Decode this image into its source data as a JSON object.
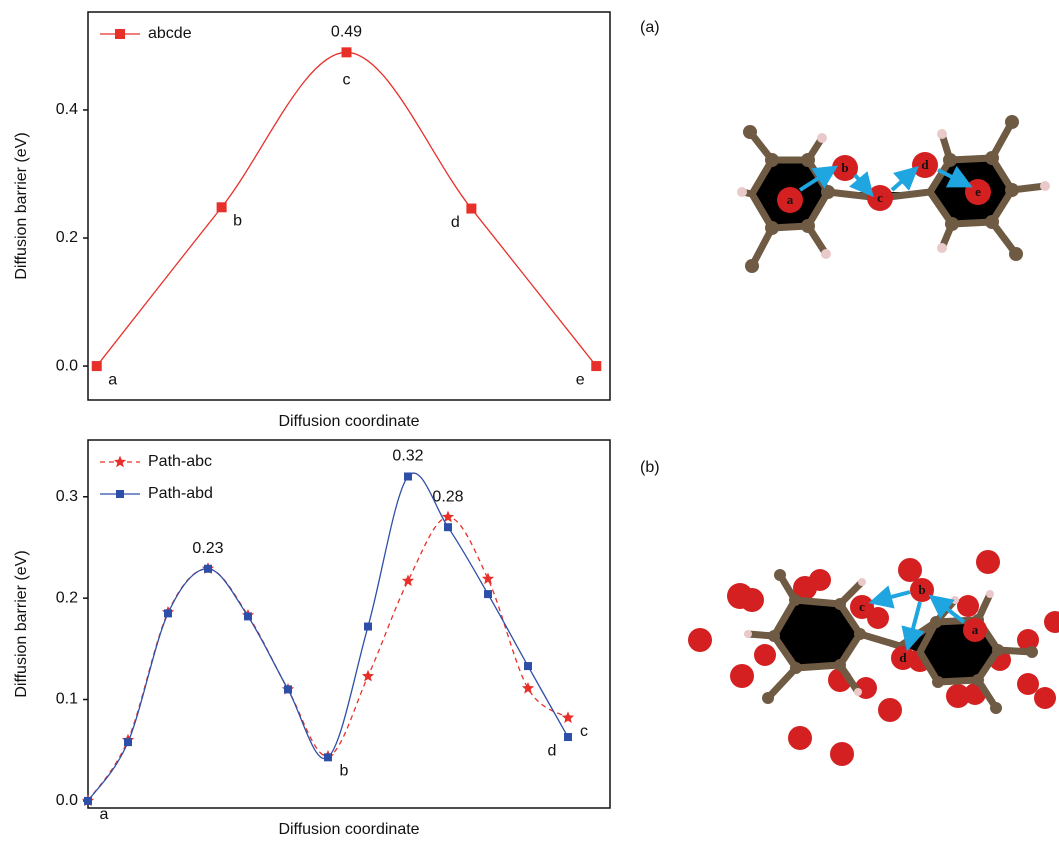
{
  "chart_data": [
    {
      "type": "line",
      "x_label": "Diffusion coordinate",
      "y_label": "Diffusion barrier (eV)",
      "x": [
        0,
        1,
        2,
        3,
        4
      ],
      "xlim": [
        -0.07,
        4.11
      ],
      "ylim": [
        -0.053,
        0.553
      ],
      "yticks": [
        {
          "value": 0,
          "label": "0.0"
        },
        0.2,
        0.4
      ],
      "legend": "upper left",
      "series": [
        {
          "name": "abcde",
          "color": "#e8302a",
          "marker": "square",
          "dashed": false,
          "values": [
            0,
            0.248,
            0.49,
            0.246,
            0
          ],
          "value_labels": [
            null,
            null,
            "0.49",
            null,
            null
          ],
          "point_labels": [
            "a",
            "b",
            "c",
            "d",
            "e"
          ]
        }
      ]
    },
    {
      "type": "line",
      "x_label": "Diffusion coordinate",
      "y_label": "Diffusion barrier (eV)",
      "x": [
        0,
        1,
        2,
        3,
        4,
        5,
        6,
        7,
        8,
        9,
        10,
        11,
        12
      ],
      "xlim": [
        0,
        13.05
      ],
      "ylim": [
        -0.007,
        0.356
      ],
      "yticks": [
        {
          "value": 0,
          "label": "0.0"
        },
        0.1,
        0.2,
        0.3
      ],
      "legend": "upper left",
      "series": [
        {
          "name": "Path-abc",
          "color": "#e8302a",
          "marker": "star",
          "dashed": true,
          "values": [
            0,
            0.06,
            0.186,
            0.229,
            0.183,
            0.11,
            0.044,
            0.123,
            0.217,
            0.28,
            0.219,
            0.111,
            0.082
          ],
          "value_labels": [
            null,
            null,
            null,
            null,
            null,
            null,
            null,
            null,
            null,
            "0.28",
            null,
            null,
            null
          ],
          "point_labels": [
            null,
            null,
            null,
            null,
            null,
            null,
            null,
            null,
            null,
            null,
            null,
            null,
            "c"
          ]
        },
        {
          "name": "Path-abd",
          "color": "#2e4fa8",
          "marker": "square",
          "dashed": false,
          "values": [
            0,
            0.058,
            0.185,
            0.229,
            0.182,
            0.11,
            0.043,
            0.172,
            0.32,
            0.27,
            0.204,
            0.133,
            0.063
          ],
          "value_labels": [
            null,
            null,
            null,
            "0.23",
            null,
            null,
            null,
            null,
            "0.32",
            null,
            null,
            null,
            null
          ],
          "point_labels": [
            "a",
            null,
            null,
            null,
            null,
            null,
            "b",
            null,
            null,
            null,
            null,
            null,
            "d"
          ]
        }
      ]
    }
  ],
  "panels": [
    {
      "label": "(a)",
      "atoms": [
        "a",
        "b",
        "c",
        "d",
        "e"
      ]
    },
    {
      "label": "(b)",
      "atoms": [
        "c",
        "b",
        "a",
        "d"
      ]
    }
  ]
}
